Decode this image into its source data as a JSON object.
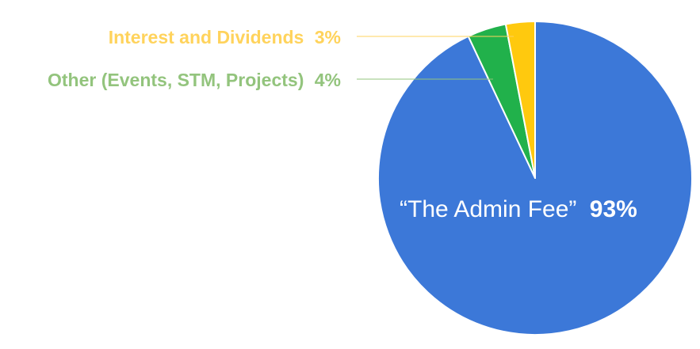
{
  "chart_data": {
    "type": "pie",
    "slices": [
      {
        "name": "“The Admin Fee”",
        "value_label": "93%",
        "value": 93,
        "color": "#3c78d8"
      },
      {
        "name": "Other (Events, STM, Projects)",
        "value_label": "4%",
        "value": 4,
        "color": "#21b14b"
      },
      {
        "name": "Interest and Dividends",
        "value_label": "3%",
        "value": 3,
        "color": "#ffc90e"
      }
    ],
    "label_colors": {
      "interest": "#ffd35c",
      "other": "#93c47d",
      "admin": "#ffffff"
    }
  }
}
